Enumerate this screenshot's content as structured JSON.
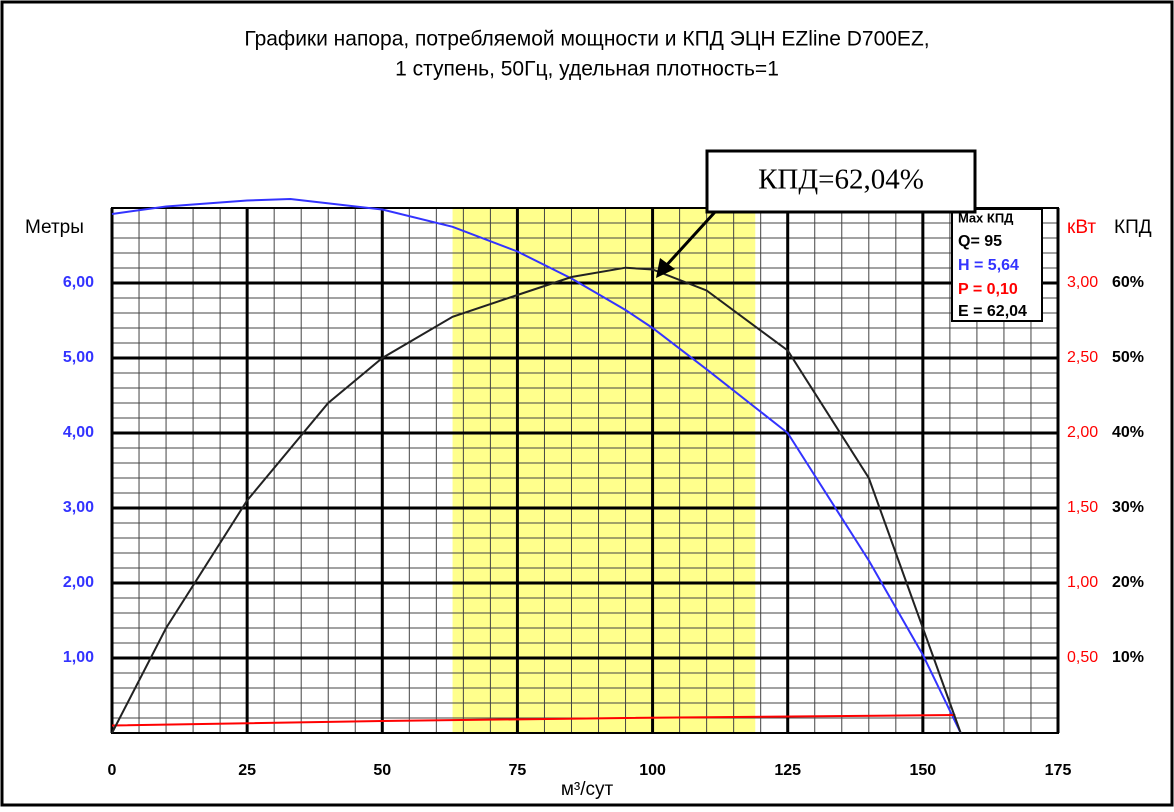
{
  "chart_data": {
    "type": "line",
    "title": "Графики напора, потребляемой мощности и КПД ЭЦН EZline D700EZ,",
    "subtitle": "1 ступень, 50Гц, удельная плотность=1",
    "x_label": "м³/сут",
    "y_label": "Метры",
    "y2_label": "кВт",
    "y3_label": "КПД",
    "xlim": [
      0,
      175
    ],
    "xticks": [
      0,
      25,
      50,
      75,
      100,
      125,
      150,
      175
    ],
    "ylim": [
      0,
      7
    ],
    "yticks": [
      {
        "value": 1,
        "label": "1,00"
      },
      {
        "value": 2,
        "label": "2,00"
      },
      {
        "value": 3,
        "label": "3,00"
      },
      {
        "value": 4,
        "label": "4,00"
      },
      {
        "value": 5,
        "label": "5,00"
      },
      {
        "value": 6,
        "label": "6,00"
      }
    ],
    "y2lim": [
      0,
      3.5
    ],
    "y2ticks": [
      {
        "value": 0.5,
        "label": "0,50"
      },
      {
        "value": 1,
        "label": "1,00"
      },
      {
        "value": 1.5,
        "label": "1,50"
      },
      {
        "value": 2,
        "label": "2,00"
      },
      {
        "value": 2.5,
        "label": "2,50"
      },
      {
        "value": 3,
        "label": "3,00"
      }
    ],
    "y3lim": [
      0,
      70
    ],
    "y3ticks": [
      {
        "value": 10,
        "label": "10%"
      },
      {
        "value": 20,
        "label": "20%"
      },
      {
        "value": 30,
        "label": "30%"
      },
      {
        "value": 40,
        "label": "40%"
      },
      {
        "value": 50,
        "label": "50%"
      },
      {
        "value": 60,
        "label": "60%"
      }
    ],
    "grid": true,
    "grid_step": {
      "x": 5,
      "y": 0.2
    },
    "working_range": [
      63,
      119
    ],
    "working_range_color": "#ffff66",
    "series": [
      {
        "name": "Напор",
        "color": "#3333ff",
        "axis": "y",
        "x": [
          0,
          10,
          25,
          33,
          50,
          63,
          75,
          85,
          95,
          100,
          110,
          125,
          140,
          150,
          157
        ],
        "values": [
          6.92,
          7.02,
          7.1,
          7.12,
          6.98,
          6.75,
          6.42,
          6.06,
          5.64,
          5.4,
          4.85,
          4.0,
          2.3,
          1.04,
          0
        ]
      },
      {
        "name": "Мощность",
        "color": "#ff0000",
        "axis": "y2",
        "x": [
          0,
          50,
          95,
          156
        ],
        "values": [
          0.05,
          0.08,
          0.1,
          0.12
        ]
      },
      {
        "name": "КПД",
        "color": "#222222",
        "axis": "y3",
        "x": [
          0,
          10,
          25,
          40,
          50,
          63,
          75,
          85,
          95,
          100,
          110,
          125,
          140,
          147,
          152,
          157
        ],
        "values": [
          0,
          14,
          31,
          44,
          50,
          55.5,
          58.4,
          60.8,
          62.04,
          61.8,
          59,
          51,
          34,
          20,
          10,
          0
        ]
      }
    ],
    "legend": {
      "title": "Max КПД",
      "q": "Q= 95",
      "h": "H = 5,64",
      "p": "P = 0,10",
      "e": "E = 62,04"
    },
    "annotation": "КПД=62,04%"
  }
}
